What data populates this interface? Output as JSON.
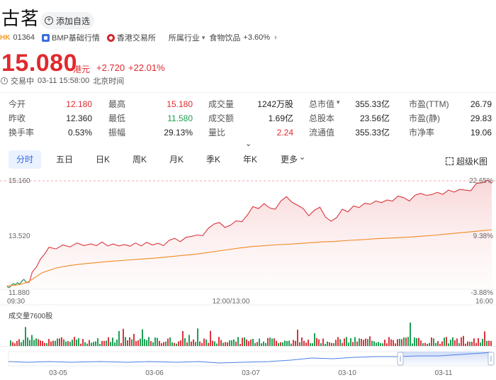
{
  "header": {
    "title": "古茗",
    "watch_label": "添加自选"
  },
  "meta": {
    "market": "HK",
    "code": "01364",
    "bmp_label": "BMP基础行情",
    "exchange": "香港交易所",
    "industry_label": "所属行业",
    "sector": "食物饮品",
    "sector_change": "+3.60%"
  },
  "quote": {
    "price": "15.080",
    "unit": "港元",
    "change": "+2.720",
    "change_pct": "+22.01%",
    "status": "交易中",
    "time": "03-11 15:58:00",
    "tz": "北京时间"
  },
  "stats": [
    [
      {
        "label": "今开",
        "value": "12.180",
        "tone": "up"
      },
      {
        "label": "最高",
        "value": "15.180",
        "tone": "up"
      },
      {
        "label": "成交量",
        "value": "1242万股",
        "tone": "neutral"
      },
      {
        "label": "总市值",
        "value": "355.33亿",
        "tone": "neutral"
      },
      {
        "label": "市盈(TTM)",
        "value": "26.79",
        "tone": "neutral"
      }
    ],
    [
      {
        "label": "昨收",
        "value": "12.360",
        "tone": "neutral"
      },
      {
        "label": "最低",
        "value": "11.580",
        "tone": "down"
      },
      {
        "label": "成交额",
        "value": "1.69亿",
        "tone": "neutral"
      },
      {
        "label": "总股本",
        "value": "23.56亿",
        "tone": "neutral"
      },
      {
        "label": "市盈(静)",
        "value": "29.83",
        "tone": "neutral"
      }
    ],
    [
      {
        "label": "换手率",
        "value": "0.53%",
        "tone": "neutral"
      },
      {
        "label": "振幅",
        "value": "29.13%",
        "tone": "neutral"
      },
      {
        "label": "量比",
        "value": "2.24",
        "tone": "up"
      },
      {
        "label": "流通值",
        "value": "355.33亿",
        "tone": "neutral"
      },
      {
        "label": "市净率",
        "value": "19.06",
        "tone": "neutral"
      }
    ]
  ],
  "tabs": [
    "分时",
    "五日",
    "日K",
    "周K",
    "月K",
    "季K",
    "年K",
    "更多"
  ],
  "active_tab": "分时",
  "super_k_label": "超级K图",
  "chart_data": {
    "type": "line",
    "y_labels_left": [
      "15.160",
      "13.520",
      "11.880"
    ],
    "y_labels_right": [
      "22.65%",
      "9.38%",
      "-3.88%"
    ],
    "x_labels": [
      "09:30",
      "12:00/13:00",
      "16:00"
    ],
    "ylim": [
      11.88,
      15.16
    ],
    "prev_close": 12.36,
    "series": [
      {
        "name": "",
        "color": "#d9363e",
        "x": [
          0,
          3,
          6,
          9,
          12,
          15,
          18,
          21,
          24,
          28,
          32,
          36,
          42,
          48,
          54,
          60,
          70,
          80,
          90,
          100,
          110,
          120,
          128,
          136,
          144,
          152,
          160,
          168,
          176,
          184,
          192,
          200,
          208,
          216,
          224,
          232,
          240,
          248,
          256,
          264,
          272,
          280,
          288,
          296,
          304,
          312,
          320,
          328,
          336,
          344,
          352,
          360,
          368,
          376,
          384,
          392,
          400,
          408,
          416,
          424,
          432,
          440,
          448,
          456,
          464,
          472,
          480,
          488,
          496,
          504,
          512,
          520,
          528,
          536,
          544,
          552,
          560,
          568,
          576,
          584,
          592,
          600,
          608,
          616,
          624,
          632,
          640,
          648,
          656,
          664,
          672,
          680,
          688,
          694
        ],
        "values": [
          11.96,
          11.93,
          12.0,
          12.05,
          12.02,
          12.08,
          12.03,
          12.12,
          12.18,
          12.08,
          12.1,
          12.4,
          12.55,
          12.8,
          12.95,
          13.15,
          13.1,
          13.22,
          13.16,
          13.28,
          13.2,
          13.25,
          13.2,
          13.31,
          13.19,
          13.25,
          13.19,
          13.23,
          13.18,
          13.28,
          13.19,
          13.3,
          13.22,
          13.27,
          13.2,
          13.36,
          13.42,
          13.32,
          13.45,
          13.48,
          13.52,
          13.5,
          13.72,
          13.85,
          13.9,
          13.75,
          13.82,
          13.95,
          13.92,
          14.12,
          14.38,
          14.32,
          14.47,
          14.34,
          14.3,
          14.55,
          14.68,
          14.51,
          14.42,
          14.32,
          14.1,
          14.27,
          14.36,
          14.06,
          13.94,
          14.05,
          14.3,
          14.22,
          14.4,
          14.35,
          14.48,
          14.45,
          14.55,
          14.5,
          14.58,
          14.55,
          14.7,
          14.65,
          14.55,
          14.72,
          14.78,
          14.72,
          14.74,
          14.81,
          14.75,
          14.88,
          14.82,
          14.9,
          14.88,
          14.86,
          15.08,
          15.1,
          15.18,
          15.08
        ]
      },
      {
        "name": "",
        "color": "#f08a24",
        "x": [
          0,
          10,
          20,
          30,
          50,
          70,
          90,
          110,
          130,
          150,
          170,
          190,
          210,
          230,
          250,
          270,
          290,
          310,
          330,
          350,
          370,
          390,
          410,
          430,
          450,
          470,
          490,
          510,
          530,
          550,
          570,
          590,
          610,
          630,
          650,
          670,
          694
        ],
        "values": [
          11.98,
          12.0,
          12.03,
          12.1,
          12.38,
          12.52,
          12.6,
          12.65,
          12.69,
          12.73,
          12.76,
          12.79,
          12.82,
          12.86,
          12.9,
          12.94,
          13.0,
          13.06,
          13.12,
          13.17,
          13.2,
          13.23,
          13.25,
          13.28,
          13.31,
          13.33,
          13.36,
          13.38,
          13.41,
          13.43,
          13.45,
          13.48,
          13.51,
          13.55,
          13.59,
          13.63,
          13.68
        ]
      }
    ],
    "volume_label": "成交量7600股",
    "minimap_labels": [
      "03-05",
      "03-06",
      "03-07",
      "03-10",
      "03-11"
    ]
  }
}
